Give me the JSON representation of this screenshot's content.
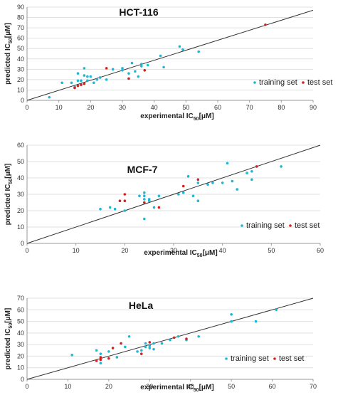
{
  "colors": {
    "training": "#1fb6d4",
    "test": "#d42020"
  },
  "chart_data": [
    {
      "type": "scatter",
      "title": "HCT-116",
      "xlabel": "experimental IC",
      "xlabel_sub": "50",
      "xlabel_unit": "[μM]",
      "ylabel": "predicted IC",
      "ylabel_sub": "50",
      "ylabel_unit": "[μM]",
      "xlim": [
        0,
        90
      ],
      "ylim": [
        0,
        90
      ],
      "xticks": [
        "0",
        "10",
        "20",
        "30",
        "40",
        "50",
        "60",
        "70",
        "80",
        "90"
      ],
      "yticks": [
        "0",
        "10",
        "20",
        "30",
        "40",
        "50",
        "60",
        "70",
        "80",
        "90"
      ],
      "grid": "horizontal",
      "legend_position": "right",
      "regression": [
        [
          0,
          0
        ],
        [
          90,
          87
        ]
      ],
      "series": [
        {
          "name": "training set",
          "color_key": "training",
          "points": [
            [
              7,
              3
            ],
            [
              11,
              17
            ],
            [
              14,
              17
            ],
            [
              15,
              13
            ],
            [
              16,
              26
            ],
            [
              16,
              19
            ],
            [
              17,
              15
            ],
            [
              17,
              19
            ],
            [
              18,
              24
            ],
            [
              18,
              31
            ],
            [
              19,
              23
            ],
            [
              19,
              19
            ],
            [
              20,
              23
            ],
            [
              21,
              17
            ],
            [
              22,
              20
            ],
            [
              23,
              22
            ],
            [
              25,
              20
            ],
            [
              27,
              30
            ],
            [
              30,
              29
            ],
            [
              30,
              31
            ],
            [
              32,
              26
            ],
            [
              33,
              36
            ],
            [
              34,
              28
            ],
            [
              35,
              23
            ],
            [
              36,
              33
            ],
            [
              36,
              35
            ],
            [
              38,
              34
            ],
            [
              42,
              43
            ],
            [
              43,
              32
            ],
            [
              48,
              52
            ],
            [
              49,
              49
            ],
            [
              54,
              47
            ]
          ]
        },
        {
          "name": "test set",
          "color_key": "test",
          "points": [
            [
              15,
              12
            ],
            [
              16,
              14
            ],
            [
              17,
              15
            ],
            [
              18,
              16
            ],
            [
              25,
              31
            ],
            [
              32,
              21
            ],
            [
              37,
              29
            ],
            [
              75,
              73
            ]
          ]
        }
      ]
    },
    {
      "type": "scatter",
      "title": "MCF-7",
      "xlabel": "experimental IC",
      "xlabel_sub": "50",
      "xlabel_unit": "[μM]",
      "ylabel": "predicted IC",
      "ylabel_sub": "50",
      "ylabel_unit": "[μM]",
      "xlim": [
        0,
        60
      ],
      "ylim": [
        0,
        60
      ],
      "xticks": [
        "0",
        "10",
        "20",
        "30",
        "40",
        "50",
        "60"
      ],
      "yticks": [
        "0",
        "10",
        "20",
        "30",
        "40",
        "50",
        "60"
      ],
      "grid": "horizontal",
      "legend_position": "right",
      "regression": [
        [
          0,
          0
        ],
        [
          60,
          60
        ]
      ],
      "series": [
        {
          "name": "training set",
          "color_key": "training",
          "points": [
            [
              15,
              21
            ],
            [
              17,
              22
            ],
            [
              18,
              21
            ],
            [
              20,
              20
            ],
            [
              23,
              29
            ],
            [
              24,
              15
            ],
            [
              24,
              27
            ],
            [
              24,
              29
            ],
            [
              24,
              31
            ],
            [
              25,
              26
            ],
            [
              25,
              27
            ],
            [
              26,
              22
            ],
            [
              27,
              29
            ],
            [
              31,
              30
            ],
            [
              32,
              31
            ],
            [
              33,
              41
            ],
            [
              34,
              29
            ],
            [
              35,
              26
            ],
            [
              35,
              37
            ],
            [
              37,
              36
            ],
            [
              38,
              37
            ],
            [
              40,
              37
            ],
            [
              41,
              49
            ],
            [
              42,
              38
            ],
            [
              43,
              33
            ],
            [
              45,
              43
            ],
            [
              46,
              39
            ],
            [
              46,
              44
            ],
            [
              52,
              47
            ]
          ]
        },
        {
          "name": "test set",
          "color_key": "test",
          "points": [
            [
              19,
              26
            ],
            [
              20,
              26
            ],
            [
              20,
              30
            ],
            [
              24,
              25
            ],
            [
              27,
              22
            ],
            [
              32,
              35
            ],
            [
              35,
              39
            ],
            [
              47,
              47
            ]
          ]
        }
      ]
    },
    {
      "type": "scatter",
      "title": "HeLa",
      "xlabel": "experimental IC",
      "xlabel_sub": "50",
      "xlabel_unit": "[μM]",
      "ylabel": "predicted IC",
      "ylabel_sub": "50",
      "ylabel_unit": "[μM]",
      "xlim": [
        0,
        70
      ],
      "ylim": [
        0,
        70
      ],
      "xticks": [
        "0",
        "10",
        "20",
        "30",
        "40",
        "50",
        "60",
        "70"
      ],
      "yticks": [
        "0",
        "10",
        "20",
        "30",
        "40",
        "50",
        "60",
        "70"
      ],
      "grid": "horizontal",
      "legend_position": "right",
      "regression": [
        [
          0,
          0
        ],
        [
          70,
          70
        ]
      ],
      "series": [
        {
          "name": "training set",
          "color_key": "training",
          "points": [
            [
              11,
              21
            ],
            [
              17,
              25
            ],
            [
              18,
              14
            ],
            [
              18,
              22
            ],
            [
              20,
              24
            ],
            [
              22,
              19
            ],
            [
              24,
              28
            ],
            [
              25,
              37
            ],
            [
              27,
              24
            ],
            [
              28,
              25
            ],
            [
              29,
              31
            ],
            [
              29,
              28
            ],
            [
              30,
              27
            ],
            [
              30,
              29
            ],
            [
              31,
              31
            ],
            [
              31,
              26
            ],
            [
              33,
              31
            ],
            [
              35,
              34
            ],
            [
              37,
              37
            ],
            [
              39,
              34
            ],
            [
              42,
              37
            ],
            [
              50,
              50
            ],
            [
              50,
              56
            ],
            [
              56,
              50
            ],
            [
              61,
              60
            ]
          ]
        },
        {
          "name": "test set",
          "color_key": "test",
          "points": [
            [
              17,
              16
            ],
            [
              18,
              17
            ],
            [
              18,
              19
            ],
            [
              20,
              18
            ],
            [
              21,
              27
            ],
            [
              23,
              31
            ],
            [
              28,
              22
            ],
            [
              30,
              32
            ],
            [
              36,
              36
            ],
            [
              39,
              35
            ]
          ]
        }
      ]
    }
  ]
}
